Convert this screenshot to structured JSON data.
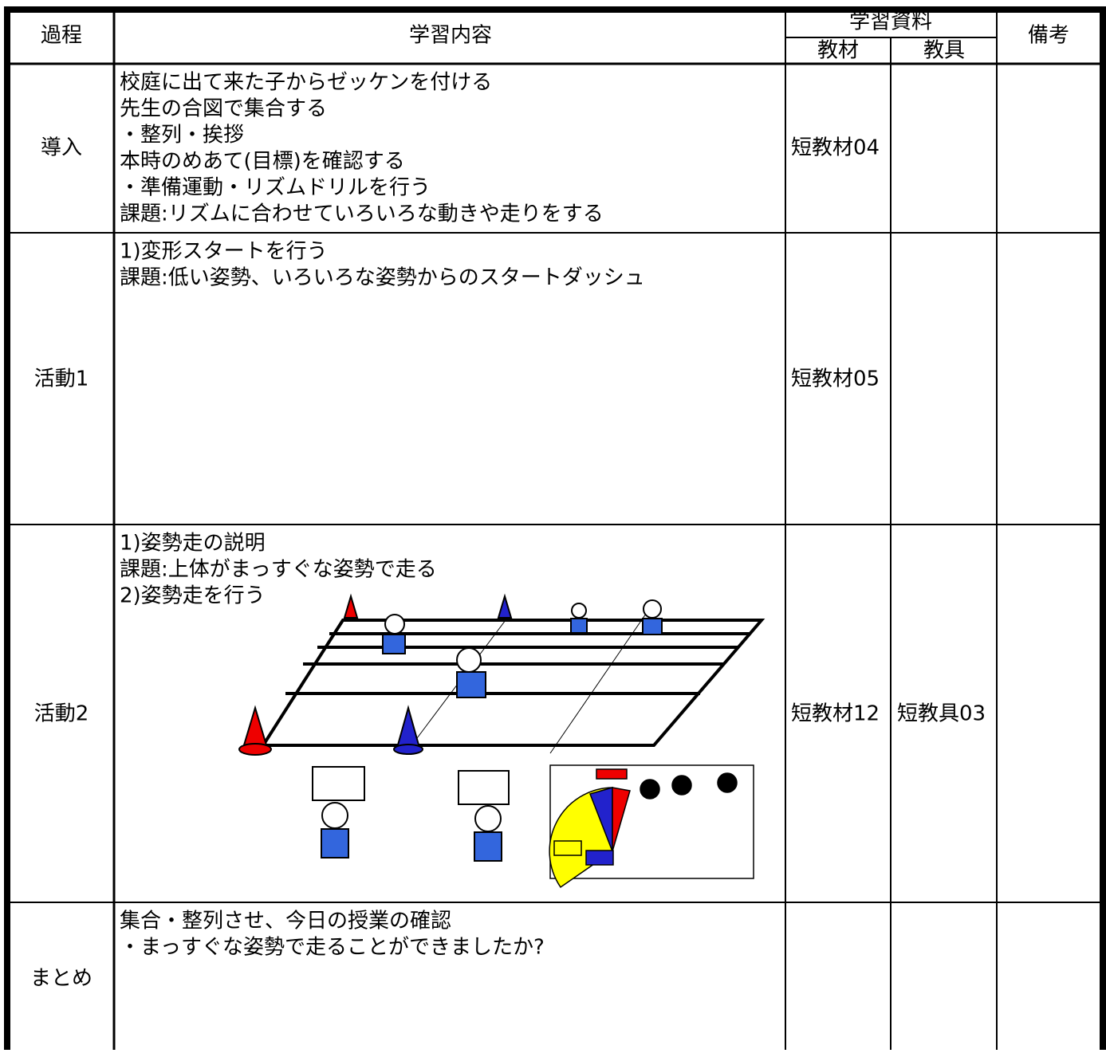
{
  "header": {
    "process": "過程",
    "content": "学習内容",
    "materials": "学習資料",
    "kyozai": "教材",
    "kyogu": "教具",
    "notes": "備考"
  },
  "rows": [
    {
      "process": "導入",
      "content": [
        "校庭に出て来た子からゼッケンを付ける",
        "先生の合図で集合する",
        "・整列・挨拶",
        "本時のめあて(目標)を確認する",
        "・準備運動・リズムドリルを行う",
        "課題:リズムに合わせていろいろな動きや走りをする"
      ],
      "kyozai": "短教材04"
    },
    {
      "process": "活動1",
      "content": [
        "1)変形スタートを行う",
        "課題:低い姿勢、いろいろな姿勢からのスタートダッシュ"
      ],
      "kyozai": "短教材05"
    },
    {
      "process": "活動2",
      "content": [
        "1)姿勢走の説明",
        "課題:上体がまっすぐな姿勢で走る",
        "2)姿勢走を行う"
      ],
      "kyozai": "短教材12",
      "kyogu": "短教具03"
    },
    {
      "process": "まとめ",
      "content": [
        "集合・整列させ、今日の授業の確認",
        "・まっすぐな姿勢で走ることができましたか?"
      ]
    }
  ]
}
